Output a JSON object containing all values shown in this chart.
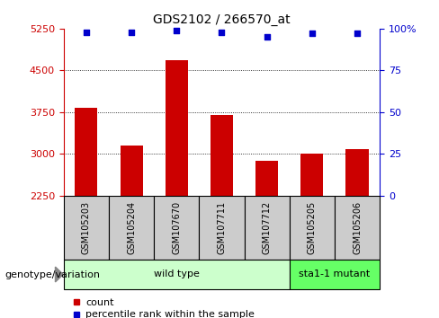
{
  "title": "GDS2102 / 266570_at",
  "samples": [
    "GSM105203",
    "GSM105204",
    "GSM107670",
    "GSM107711",
    "GSM107712",
    "GSM105205",
    "GSM105206"
  ],
  "counts": [
    3820,
    3150,
    4680,
    3700,
    2870,
    3010,
    3080
  ],
  "percentile_ranks": [
    98,
    98,
    99,
    98,
    95,
    97,
    97
  ],
  "ylim_left": [
    2250,
    5250
  ],
  "ylim_right": [
    0,
    100
  ],
  "yticks_left": [
    2250,
    3000,
    3750,
    4500,
    5250
  ],
  "yticks_right": [
    0,
    25,
    50,
    75,
    100
  ],
  "bar_color": "#cc0000",
  "dot_color": "#0000cc",
  "wild_type_indices": [
    0,
    1,
    2,
    3,
    4
  ],
  "mutant_indices": [
    5,
    6
  ],
  "wild_type_label": "wild type",
  "mutant_label": "sta1-1 mutant",
  "wild_type_color": "#ccffcc",
  "mutant_color": "#66ff66",
  "genotype_label": "genotype/variation",
  "legend_count": "count",
  "legend_percentile": "percentile rank within the sample",
  "xlabel_area_color": "#cccccc",
  "bar_width": 0.5
}
